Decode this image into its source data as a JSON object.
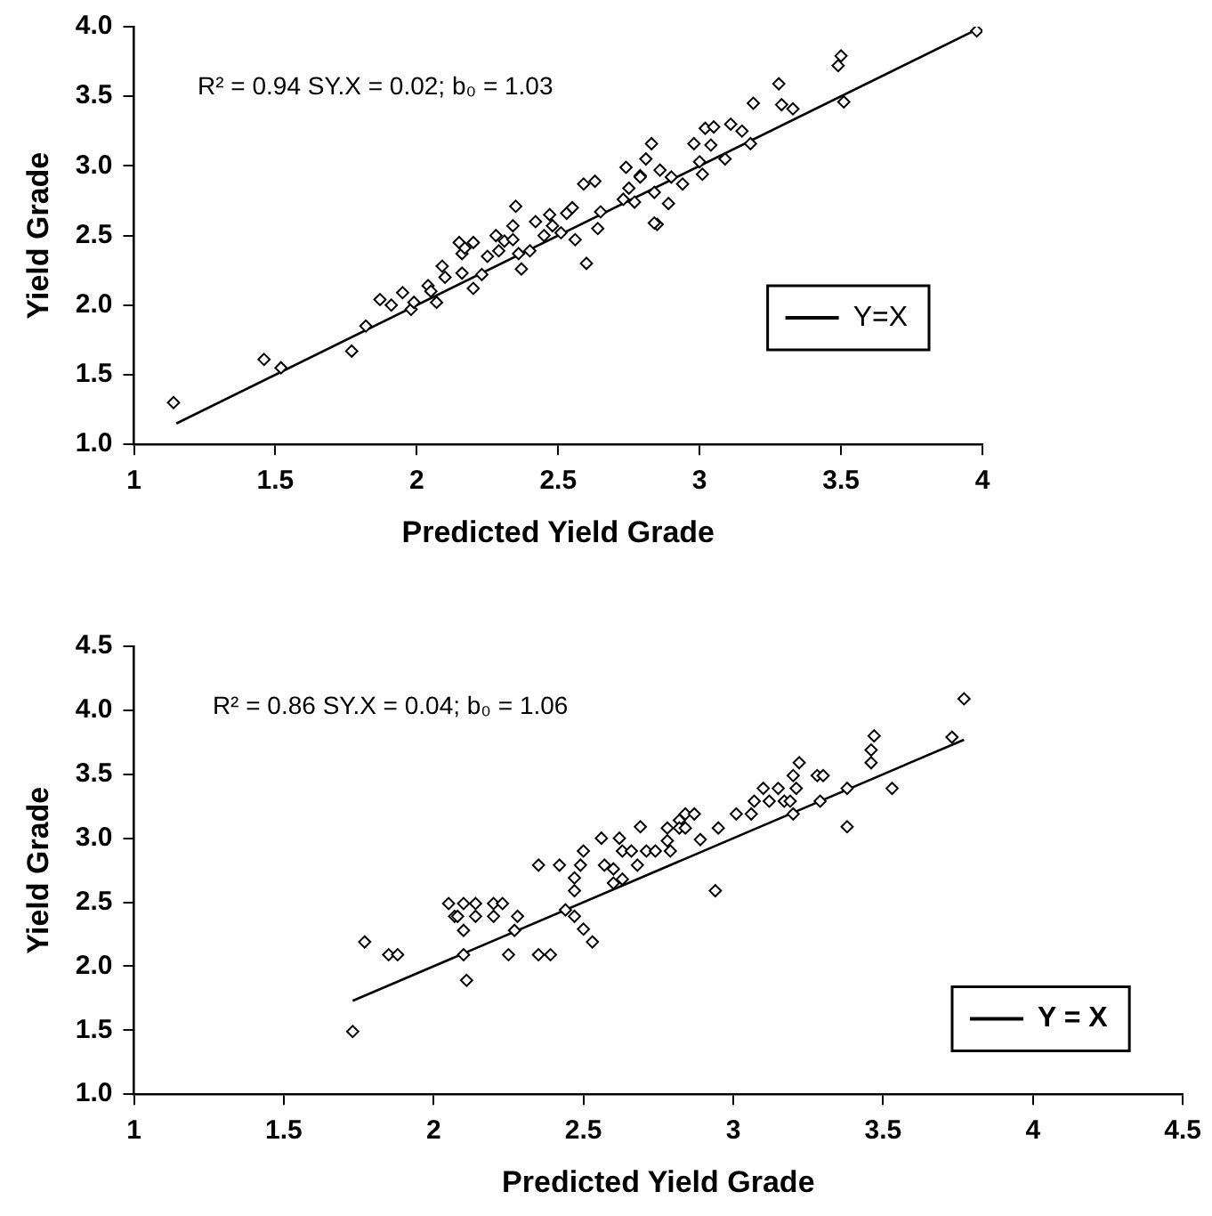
{
  "chart_data": [
    {
      "type": "scatter",
      "xlabel": "Predicted Yield Grade",
      "ylabel": "Yield Grade",
      "xlim": [
        1,
        4
      ],
      "xticks": [
        1,
        1.5,
        2,
        2.5,
        3,
        3.5,
        4
      ],
      "ylim": [
        1.0,
        4.0
      ],
      "yticks": [
        {
          "value": 1,
          "label": "1.0"
        },
        1.5,
        {
          "value": 2,
          "label": "2.0"
        },
        2.5,
        {
          "value": 3,
          "label": "3.0"
        },
        3.5,
        {
          "value": 4,
          "label": "4.0"
        }
      ],
      "grid": false,
      "legend": "right",
      "marker": "diamond",
      "annotations": [
        "R² = 0.94 SY.X = 0.02; b₀ = 1.03"
      ],
      "series": [
        {
          "color": "#000000",
          "x": [
            1.14,
            1.46,
            1.52,
            1.77,
            1.82,
            1.87,
            1.91,
            1.95,
            1.98,
            1.99,
            2.04,
            2.05,
            2.07,
            2.09,
            2.1,
            2.15,
            2.16,
            2.17,
            2.16,
            2.2,
            2.2,
            2.23,
            2.25,
            2.28,
            2.29,
            2.31,
            2.34,
            2.35,
            2.34,
            2.36,
            2.37,
            2.4,
            2.42,
            2.45,
            2.47,
            2.48,
            2.51,
            2.53,
            2.55,
            2.56,
            2.59,
            2.6,
            2.63,
            2.64,
            2.65,
            2.73,
            2.74,
            2.75,
            2.77,
            2.79,
            2.83,
            2.85,
            2.84,
            2.81,
            2.84,
            2.89,
            2.79,
            2.86,
            2.9,
            2.94,
            2.98,
            3.0,
            3.01,
            3.02,
            3.05,
            3.04,
            3.09,
            3.11,
            3.15,
            3.18,
            3.19,
            3.28,
            3.29,
            3.33,
            3.5,
            3.49,
            3.51,
            3.98
          ],
          "values": [
            1.3,
            1.61,
            1.55,
            1.67,
            1.85,
            2.04,
            2.0,
            2.09,
            1.97,
            2.02,
            2.14,
            2.1,
            2.02,
            2.28,
            2.2,
            2.45,
            2.37,
            2.41,
            2.23,
            2.12,
            2.45,
            2.22,
            2.35,
            2.5,
            2.39,
            2.46,
            2.57,
            2.71,
            2.47,
            2.37,
            2.26,
            2.39,
            2.6,
            2.5,
            2.65,
            2.57,
            2.52,
            2.66,
            2.7,
            2.47,
            2.87,
            2.3,
            2.89,
            2.55,
            2.67,
            2.76,
            2.99,
            2.84,
            2.74,
            2.93,
            3.16,
            2.58,
            2.81,
            3.05,
            2.59,
            2.73,
            2.92,
            2.97,
            2.92,
            2.87,
            3.16,
            3.03,
            2.94,
            3.27,
            3.28,
            3.15,
            3.05,
            3.3,
            3.25,
            3.16,
            3.45,
            3.59,
            3.44,
            3.41,
            3.79,
            3.72,
            3.46,
            3.97
          ]
        },
        {
          "type": "line",
          "name": "Y=X",
          "color": "#000000",
          "marker": "none",
          "x": [
            1.15,
            3.98
          ],
          "values": [
            1.15,
            3.98
          ]
        }
      ]
    },
    {
      "type": "scatter",
      "xlabel": "Predicted Yield Grade",
      "ylabel": "Yield Grade",
      "xlim": [
        1,
        4.5
      ],
      "xticks": [
        1,
        1.5,
        2,
        2.5,
        3,
        3.5,
        4,
        4.5
      ],
      "ylim": [
        1.0,
        4.5
      ],
      "yticks": [
        {
          "value": 1,
          "label": "1.0"
        },
        1.5,
        {
          "value": 2,
          "label": "2.0"
        },
        2.5,
        {
          "value": 3,
          "label": "3.0"
        },
        3.5,
        {
          "value": 4,
          "label": "4.0"
        },
        4.5
      ],
      "grid": false,
      "legend": "right",
      "marker": "diamond",
      "annotations": [
        "R² = 0.86 SY.X = 0.04; b₀ = 1.06"
      ],
      "series": [
        {
          "color": "#000000",
          "x": [
            1.73,
            1.77,
            1.85,
            1.88,
            2.05,
            2.07,
            2.08,
            2.1,
            2.1,
            2.1,
            2.11,
            2.14,
            2.14,
            2.2,
            2.23,
            2.2,
            2.25,
            2.27,
            2.28,
            2.35,
            2.35,
            2.39,
            2.42,
            2.44,
            2.47,
            2.47,
            2.47,
            2.49,
            2.5,
            2.5,
            2.53,
            2.56,
            2.57,
            2.6,
            2.6,
            2.62,
            2.63,
            2.63,
            2.66,
            2.68,
            2.69,
            2.71,
            2.74,
            2.78,
            2.78,
            2.79,
            2.82,
            2.84,
            2.87,
            2.82,
            2.84,
            2.89,
            2.94,
            2.95,
            3.01,
            3.06,
            3.07,
            3.1,
            3.12,
            3.15,
            3.17,
            3.2,
            3.19,
            3.2,
            3.21,
            3.22,
            3.28,
            3.3,
            3.29,
            3.38,
            3.38,
            3.46,
            3.46,
            3.47,
            3.53,
            3.73,
            3.77
          ],
          "values": [
            1.49,
            2.19,
            2.09,
            2.09,
            2.49,
            2.39,
            2.39,
            2.28,
            2.49,
            2.09,
            1.89,
            2.49,
            2.39,
            2.49,
            2.49,
            2.39,
            2.09,
            2.28,
            2.39,
            2.79,
            2.09,
            2.09,
            2.79,
            2.44,
            2.39,
            2.59,
            2.69,
            2.79,
            2.29,
            2.9,
            2.19,
            3.0,
            2.79,
            2.76,
            2.65,
            3.0,
            2.9,
            2.68,
            2.9,
            2.79,
            3.09,
            2.9,
            2.9,
            3.08,
            2.98,
            2.9,
            3.14,
            3.19,
            3.19,
            3.08,
            3.08,
            2.99,
            2.59,
            3.08,
            3.19,
            3.19,
            3.29,
            3.39,
            3.29,
            3.39,
            3.29,
            3.49,
            3.29,
            3.19,
            3.39,
            3.59,
            3.49,
            3.49,
            3.29,
            3.39,
            3.09,
            3.59,
            3.69,
            3.8,
            3.39,
            3.79,
            4.09
          ]
        },
        {
          "type": "line",
          "name": "Y = X",
          "color": "#000000",
          "marker": "none",
          "x": [
            1.73,
            3.77
          ],
          "values": [
            1.73,
            3.77
          ]
        }
      ]
    }
  ]
}
